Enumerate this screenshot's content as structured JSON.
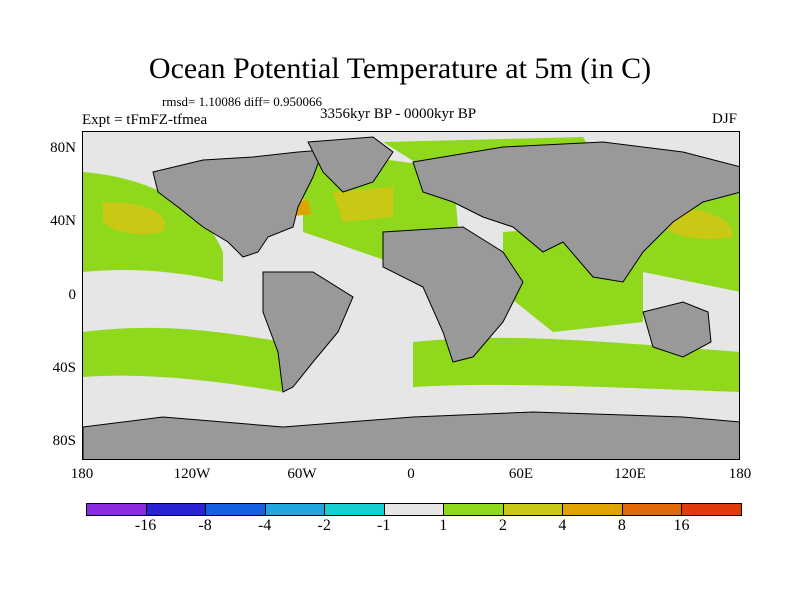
{
  "title": "Ocean Potential Temperature at 5m (in C)",
  "stats": "rmsd= 1.10086 diff= 0.950066",
  "experiment": "Expt = tFmFZ-tfmea",
  "period": "3356kyr BP - 0000kyr BP",
  "season": "DJF",
  "y_axis_labels": [
    "80N",
    "40N",
    "0",
    "40S",
    "80S"
  ],
  "x_axis_labels": [
    "180",
    "120W",
    "60W",
    "0",
    "60E",
    "120E",
    "180"
  ],
  "legend": {
    "colors": [
      "#8a2be2",
      "#2a23d6",
      "#1560e0",
      "#1fa6e0",
      "#15d0d0",
      "#e6e6e6",
      "#8fd81c",
      "#c9c814",
      "#e0a400",
      "#e06a0a",
      "#e23a0a"
    ],
    "labels": [
      "-16",
      "-8",
      "-4",
      "-2",
      "-1",
      "1",
      "2",
      "4",
      "8",
      "16"
    ]
  },
  "map_colors": {
    "ocean_neutral": "#e6e6e6",
    "land": "#999999",
    "warm_1": "#8fd81c",
    "warm_2": "#c9c814",
    "warm_3": "#e0a400"
  }
}
